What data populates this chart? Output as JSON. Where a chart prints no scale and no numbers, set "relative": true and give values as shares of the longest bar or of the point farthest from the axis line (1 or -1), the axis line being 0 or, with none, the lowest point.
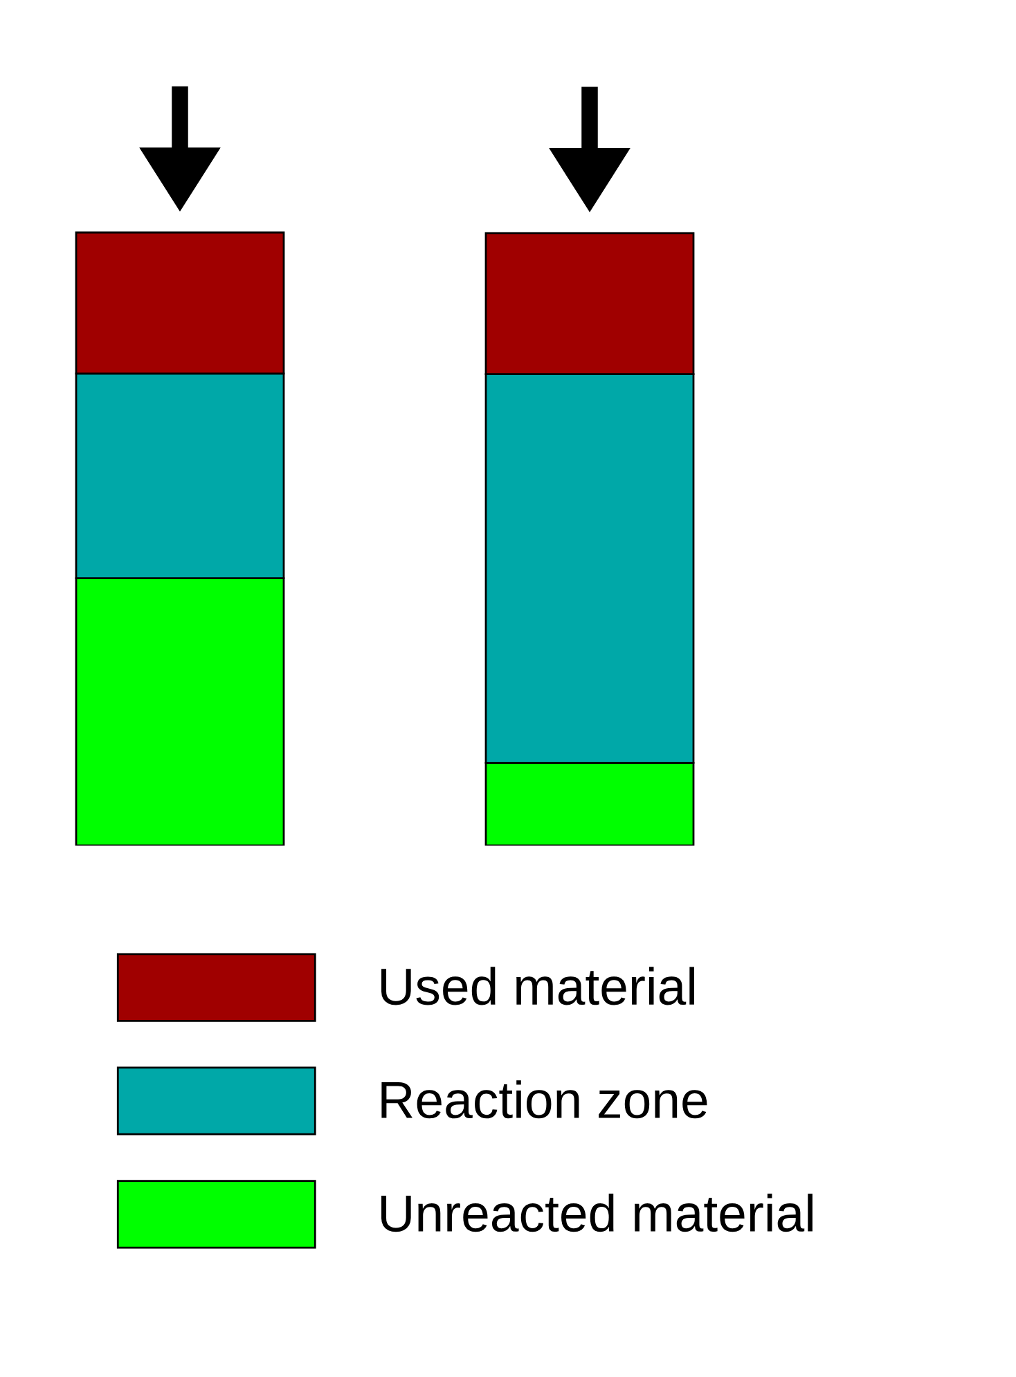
{
  "chart_data": {
    "type": "bar",
    "stacked": true,
    "relative": true,
    "categories": [
      null,
      null
    ],
    "series": [
      {
        "name": "Unreacted material",
        "color": "#00ff00",
        "values": [
          0.436,
          0.135
        ]
      },
      {
        "name": "Reaction zone",
        "color": "#00a8a8",
        "values": [
          0.334,
          0.634
        ]
      },
      {
        "name": "Used material",
        "color": "#a00000",
        "values": [
          0.23,
          0.23
        ]
      }
    ],
    "legend": "bottom"
  }
}
